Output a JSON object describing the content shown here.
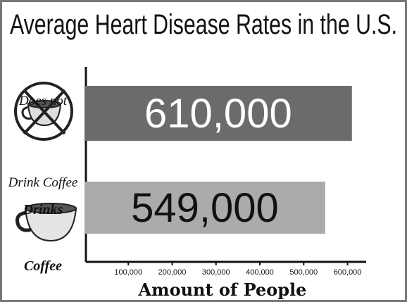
{
  "chart_data": {
    "type": "bar",
    "orientation": "horizontal",
    "title": "Average Heart Disease Rates in the U.S.",
    "x_label": "Amount of People",
    "categories": [
      "Does not\nDrink Coffee",
      "Drinks\nCoffee"
    ],
    "values": [
      610000,
      549000
    ],
    "value_labels": [
      "610,000",
      "549,000"
    ],
    "colors": [
      "#6b6b6b",
      "#ababab"
    ],
    "label_colors": [
      "#ffffff",
      "#111111"
    ],
    "xlim": [
      0,
      620000
    ],
    "xticks": [
      {
        "value": 100000,
        "label": "100,000"
      },
      {
        "value": 200000,
        "label": "200,000"
      },
      {
        "value": 300000,
        "label": "300,000"
      },
      {
        "value": 400000,
        "label": "400,000"
      },
      {
        "value": 500000,
        "label": "500,000"
      },
      {
        "value": 600000,
        "label": "600,000"
      }
    ]
  }
}
